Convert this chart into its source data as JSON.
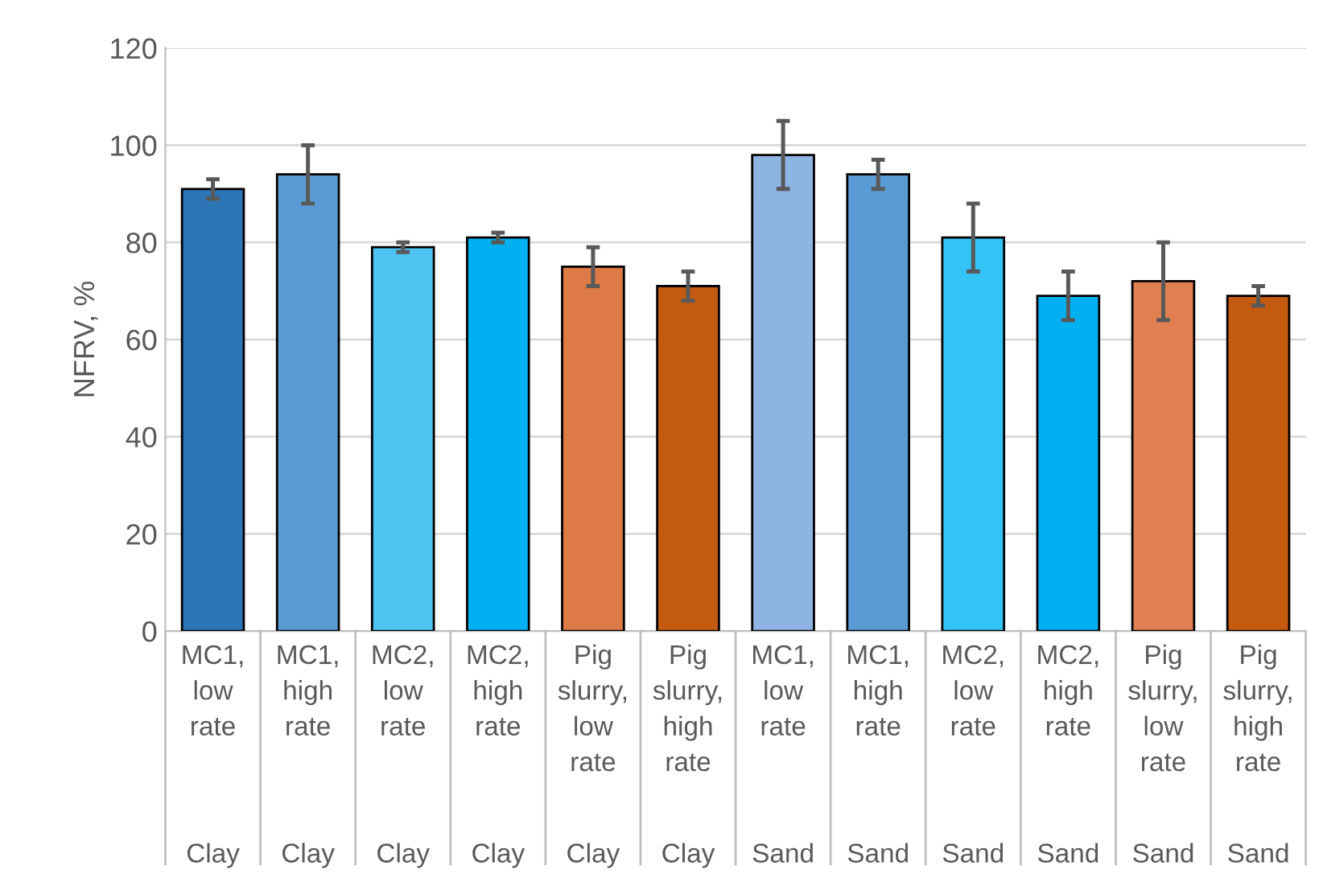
{
  "chart_data": {
    "type": "bar",
    "ylabel": "NFRV, %",
    "categories": [
      "MC1, low rate",
      "MC1, high rate",
      "MC2, low rate",
      "MC2, high rate",
      "Pig slurry, low rate",
      "Pig slurry, high rate",
      "MC1, low rate",
      "MC1, high rate",
      "MC2, low rate",
      "MC2, high rate",
      "Pig slurry, low rate",
      "Pig slurry, high rate"
    ],
    "values": [
      91,
      94,
      79,
      81,
      75,
      71,
      98,
      94,
      81,
      69,
      72,
      69
    ],
    "errors": [
      2,
      6,
      1,
      1,
      4,
      3,
      7,
      3,
      7,
      5,
      8,
      2
    ],
    "colors": [
      "#2e75b6",
      "#5b9bd5",
      "#4fc3f2",
      "#00b0f0",
      "#de7a45",
      "#c55a11",
      "#8db4e2",
      "#5b9bd5",
      "#33c3f5",
      "#00b0f0",
      "#e08050",
      "#c55a11"
    ],
    "annotations": [
      "Clay",
      "Clay",
      "Clay",
      "Clay",
      "Clay",
      "Clay",
      "Sand",
      "Sand",
      "Sand",
      "Sand",
      "Sand",
      "Sand"
    ],
    "ylim": [
      0,
      120
    ],
    "yticks": [
      0,
      20,
      40,
      60,
      80,
      100,
      120
    ],
    "grid": "y",
    "legend": false
  }
}
